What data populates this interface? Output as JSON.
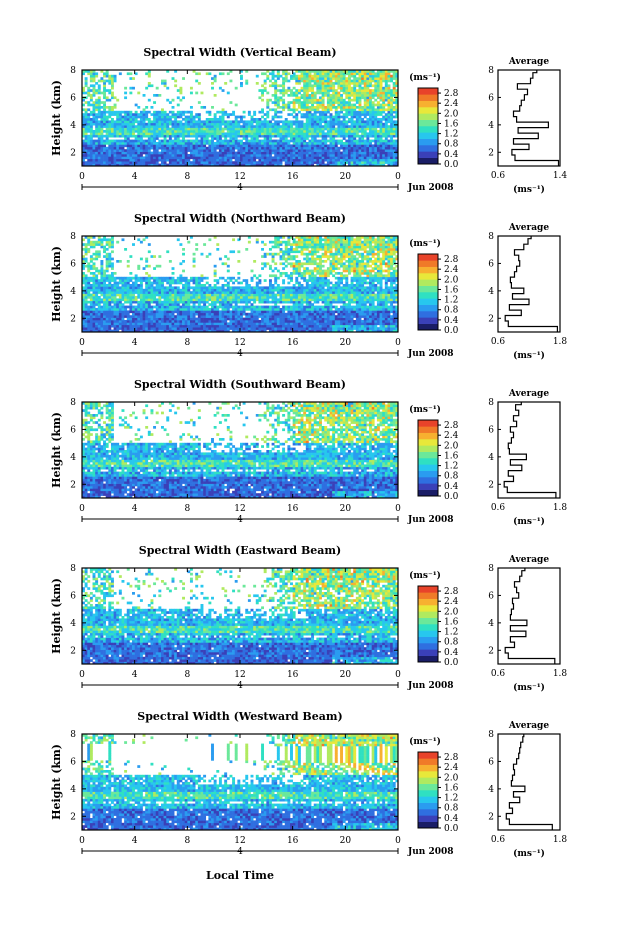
{
  "figure": {
    "xlabel": "Local Time",
    "units_label": "(ms⁻¹)",
    "date_label": "Jun 2008",
    "date_marker": "4"
  },
  "colors": {
    "colormap": [
      "#1a1d66",
      "#3a40b8",
      "#2f6fe0",
      "#2a9cf0",
      "#27c7ee",
      "#2fe0c2",
      "#6be89a",
      "#b0ea5f",
      "#e8e83a",
      "#f7b030",
      "#f07a28",
      "#e8432a"
    ],
    "missing": "#ffffff",
    "axis": "#000000"
  },
  "chart_data": [
    {
      "type": "heatmap",
      "title": "Spectral Width (Vertical Beam)",
      "ylabel": "Height (km)",
      "xlim": [
        0,
        24
      ],
      "ylim": [
        1,
        8
      ],
      "xticks": [
        "0",
        "4",
        "8",
        "12",
        "16",
        "20",
        "0"
      ],
      "yticks": [
        "2",
        "4",
        "6",
        "8"
      ],
      "colorbar": {
        "ticks": [
          "0.0",
          "0.4",
          "0.8",
          "1.2",
          "1.6",
          "2.0",
          "2.4",
          "2.8"
        ],
        "range": [
          0,
          3
        ]
      },
      "average": {
        "title": "Average",
        "xlabel": "(ms⁻¹)",
        "xlim": [
          0.6,
          1.4
        ],
        "xticks": [
          "0.6",
          "1.4"
        ],
        "ylim": [
          1,
          8
        ],
        "yticks": [
          "2",
          "4",
          "6",
          "8"
        ],
        "height": [
          1.0,
          1.4,
          1.8,
          2.2,
          2.6,
          3.0,
          3.4,
          3.8,
          4.2,
          4.6,
          5.0,
          5.4,
          5.8,
          6.2,
          6.6,
          7.0,
          7.4,
          7.8
        ],
        "value": [
          1.38,
          0.82,
          0.78,
          1.0,
          0.8,
          1.12,
          0.86,
          1.25,
          0.84,
          0.8,
          0.88,
          0.9,
          0.94,
          0.98,
          0.85,
          1.02,
          1.05,
          1.1
        ]
      }
    },
    {
      "type": "heatmap",
      "title": "Spectral Width (Northward Beam)",
      "ylabel": "Height (km)",
      "xlim": [
        0,
        24
      ],
      "ylim": [
        1,
        8
      ],
      "xticks": [
        "0",
        "4",
        "8",
        "12",
        "16",
        "20",
        "0"
      ],
      "yticks": [
        "2",
        "4",
        "6",
        "8"
      ],
      "colorbar": {
        "ticks": [
          "0.0",
          "0.4",
          "0.8",
          "1.2",
          "1.6",
          "2.0",
          "2.4",
          "2.8"
        ],
        "range": [
          0,
          3
        ]
      },
      "average": {
        "title": "Average",
        "xlabel": "(ms⁻¹)",
        "xlim": [
          0.6,
          1.8
        ],
        "xticks": [
          "0.6",
          "1.8"
        ],
        "ylim": [
          1,
          8
        ],
        "yticks": [
          "2",
          "4",
          "6",
          "8"
        ],
        "height": [
          1.0,
          1.4,
          1.8,
          2.2,
          2.6,
          3.0,
          3.4,
          3.8,
          4.2,
          4.6,
          5.0,
          5.4,
          5.8,
          6.2,
          6.6,
          7.0,
          7.4,
          7.8
        ],
        "value": [
          1.75,
          0.8,
          0.74,
          1.05,
          0.82,
          1.2,
          0.88,
          1.1,
          0.86,
          0.84,
          0.92,
          0.96,
          1.02,
          1.0,
          0.92,
          1.1,
          1.18,
          1.24
        ]
      }
    },
    {
      "type": "heatmap",
      "title": "Spectral Width (Southward Beam)",
      "ylabel": "Height (km)",
      "xlim": [
        0,
        24
      ],
      "ylim": [
        1,
        8
      ],
      "xticks": [
        "0",
        "4",
        "8",
        "12",
        "16",
        "20",
        "0"
      ],
      "yticks": [
        "2",
        "4",
        "6",
        "8"
      ],
      "colorbar": {
        "ticks": [
          "0.0",
          "0.4",
          "0.8",
          "1.2",
          "1.6",
          "2.0",
          "2.4",
          "2.8"
        ],
        "range": [
          0,
          3
        ]
      },
      "average": {
        "title": "Average",
        "xlabel": "(ms⁻¹)",
        "xlim": [
          0.6,
          1.8
        ],
        "xticks": [
          "0.6",
          "1.8"
        ],
        "ylim": [
          1,
          8
        ],
        "yticks": [
          "2",
          "4",
          "6",
          "8"
        ],
        "height": [
          1.0,
          1.4,
          1.8,
          2.2,
          2.6,
          3.0,
          3.4,
          3.8,
          4.2,
          4.6,
          5.0,
          5.4,
          5.8,
          6.2,
          6.6,
          7.0,
          7.4,
          7.8
        ],
        "value": [
          1.72,
          0.78,
          0.72,
          0.9,
          0.8,
          1.06,
          0.84,
          1.15,
          0.82,
          0.8,
          0.86,
          0.9,
          0.84,
          0.96,
          0.9,
          1.0,
          0.94,
          1.05
        ]
      }
    },
    {
      "type": "heatmap",
      "title": "Spectral Width (Eastward Beam)",
      "ylabel": "Height (km)",
      "xlim": [
        0,
        24
      ],
      "ylim": [
        1,
        8
      ],
      "xticks": [
        "0",
        "4",
        "8",
        "12",
        "16",
        "20",
        "0"
      ],
      "yticks": [
        "2",
        "4",
        "6",
        "8"
      ],
      "colorbar": {
        "ticks": [
          "0.0",
          "0.4",
          "0.8",
          "1.2",
          "1.6",
          "2.0",
          "2.4",
          "2.8"
        ],
        "range": [
          0,
          3
        ]
      },
      "average": {
        "title": "Average",
        "xlabel": "(ms⁻¹)",
        "xlim": [
          0.6,
          1.8
        ],
        "xticks": [
          "0.6",
          "1.8"
        ],
        "ylim": [
          1,
          8
        ],
        "yticks": [
          "2",
          "4",
          "6",
          "8"
        ],
        "height": [
          1.0,
          1.4,
          1.8,
          2.2,
          2.6,
          3.0,
          3.4,
          3.8,
          4.2,
          4.6,
          5.0,
          5.4,
          5.8,
          6.2,
          6.6,
          7.0,
          7.4,
          7.8
        ],
        "value": [
          1.7,
          0.8,
          0.74,
          0.92,
          0.84,
          1.14,
          0.84,
          1.16,
          0.84,
          0.86,
          0.9,
          0.88,
          1.0,
          0.96,
          0.92,
          1.02,
          1.06,
          1.12
        ]
      }
    },
    {
      "type": "heatmap",
      "title": "Spectral Width (Westward Beam)",
      "ylabel": "Height (km)",
      "xlim": [
        0,
        24
      ],
      "ylim": [
        1,
        8
      ],
      "xticks": [
        "0",
        "4",
        "8",
        "12",
        "16",
        "20",
        "0"
      ],
      "yticks": [
        "2",
        "4",
        "6",
        "8"
      ],
      "colorbar": {
        "ticks": [
          "0.0",
          "0.4",
          "0.8",
          "1.2",
          "1.6",
          "2.0",
          "2.4",
          "2.8"
        ],
        "range": [
          0,
          3
        ]
      },
      "average": {
        "title": "Average",
        "xlabel": "(ms⁻¹)",
        "xlim": [
          0.6,
          1.8
        ],
        "xticks": [
          "0.6",
          "1.8"
        ],
        "ylim": [
          1,
          8
        ],
        "yticks": [
          "2",
          "4",
          "6",
          "8"
        ],
        "height": [
          1.0,
          1.4,
          1.8,
          2.2,
          2.6,
          3.0,
          3.4,
          3.8,
          4.2,
          4.6,
          5.0,
          5.4,
          5.8,
          6.2,
          6.6,
          7.0,
          7.4,
          7.8
        ],
        "value": [
          1.65,
          0.82,
          0.76,
          0.88,
          0.82,
          1.02,
          0.9,
          1.12,
          0.86,
          0.88,
          0.92,
          0.9,
          0.96,
          1.0,
          1.02,
          1.04,
          1.08,
          1.1
        ]
      }
    }
  ]
}
